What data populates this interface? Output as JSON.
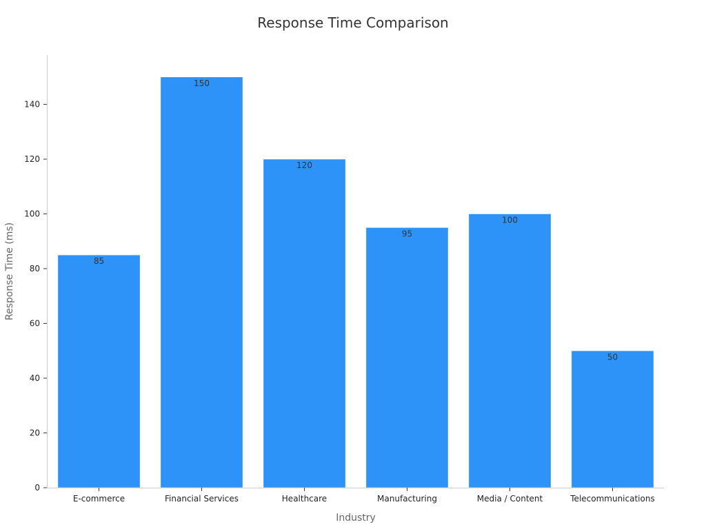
{
  "chart_data": {
    "type": "bar",
    "title": "Response Time Comparison",
    "xlabel": "Industry",
    "ylabel": "Response Time (ms)",
    "categories": [
      "E-commerce",
      "Financial Services",
      "Healthcare",
      "Manufacturing",
      "Media / Content",
      "Telecommunications"
    ],
    "values": [
      85,
      150,
      120,
      95,
      100,
      50
    ],
    "ylim": [
      0,
      158
    ],
    "yticks": [
      0,
      20,
      40,
      60,
      80,
      100,
      120,
      140
    ],
    "bar_color": "#2e93f8",
    "grid": false,
    "legend": "none"
  }
}
